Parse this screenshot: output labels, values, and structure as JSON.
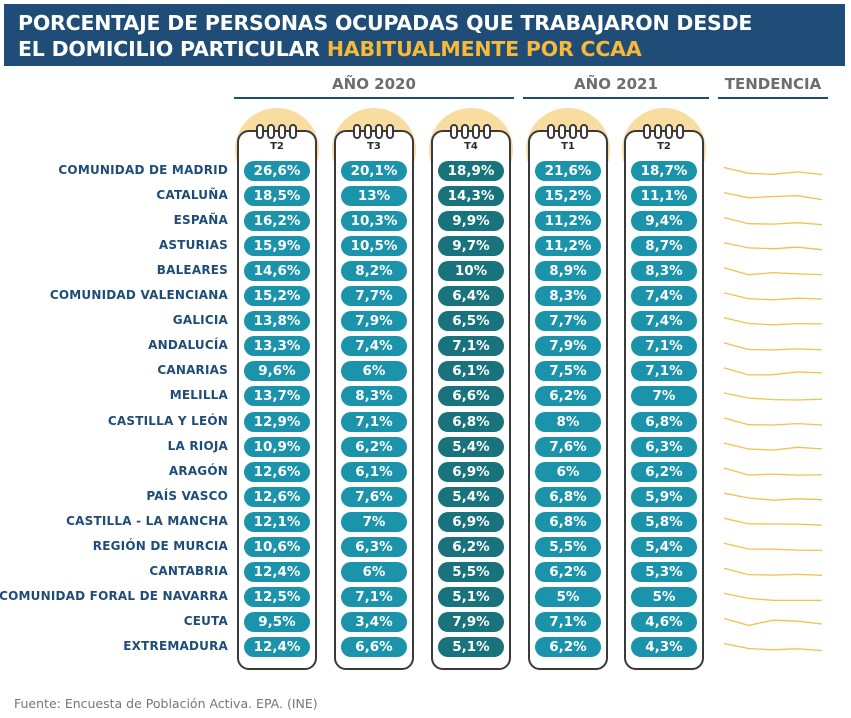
{
  "title": {
    "part1": "PORCENTAJE DE PERSONAS OCUPADAS QUE TRABAJARON DESDE",
    "part2": "EL DOMICILIO PARTICULAR ",
    "highlight": "HABITUALMENTE POR CCAA"
  },
  "headers": {
    "year2020": "AÑO 2020",
    "year2021": "AÑO 2021",
    "trend": "TENDENCIA"
  },
  "colors": {
    "title_bg": "#1f4d77",
    "highlight": "#f6b93a",
    "pill_2020_light": "#1a93ab",
    "pill_2020_dark": "#18737c",
    "pill_2021": "#1a93ab",
    "trend_line": "#f2c14e",
    "circle": "#f8dca0"
  },
  "source": "Fuente: Encuesta de Población Activa. EPA. (INE)",
  "chart_data": {
    "type": "table",
    "columns": [
      "T2",
      "T3",
      "T4",
      "T1",
      "T2"
    ],
    "column_years": [
      "AÑO 2020",
      "AÑO 2020",
      "AÑO 2020",
      "AÑO 2021",
      "AÑO 2021"
    ],
    "trend_column": "TENDENCIA",
    "rows": [
      {
        "region": "COMUNIDAD DE MADRID",
        "labels": [
          "26,6%",
          "20,1%",
          "18,9%",
          "21,6%",
          "18,7%"
        ],
        "values": [
          26.6,
          20.1,
          18.9,
          21.6,
          18.7
        ]
      },
      {
        "region": "CATALUÑA",
        "labels": [
          "18,5%",
          "13%",
          "14,3%",
          "15,2%",
          "11,1%"
        ],
        "values": [
          18.5,
          13,
          14.3,
          15.2,
          11.1
        ]
      },
      {
        "region": "ESPAÑA",
        "labels": [
          "16,2%",
          "10,3%",
          "9,9%",
          "11,2%",
          "9,4%"
        ],
        "values": [
          16.2,
          10.3,
          9.9,
          11.2,
          9.4
        ]
      },
      {
        "region": "ASTURIAS",
        "labels": [
          "15,9%",
          "10,5%",
          "9,7%",
          "11,2%",
          "8,7%"
        ],
        "values": [
          15.9,
          10.5,
          9.7,
          11.2,
          8.7
        ]
      },
      {
        "region": "BALEARES",
        "labels": [
          "14,6%",
          "8,2%",
          "10%",
          "8,9%",
          "8,3%"
        ],
        "values": [
          14.6,
          8.2,
          10,
          8.9,
          8.3
        ]
      },
      {
        "region": "COMUNIDAD VALENCIANA",
        "labels": [
          "15,2%",
          "7,7%",
          "6,4%",
          "8,3%",
          "7,4%"
        ],
        "values": [
          15.2,
          7.7,
          6.4,
          8.3,
          7.4
        ]
      },
      {
        "region": "GALICIA",
        "labels": [
          "13,8%",
          "7,9%",
          "6,5%",
          "7,7%",
          "7,4%"
        ],
        "values": [
          13.8,
          7.9,
          6.5,
          7.7,
          7.4
        ]
      },
      {
        "region": "ANDALUCÍA",
        "labels": [
          "13,3%",
          "7,4%",
          "7,1%",
          "7,9%",
          "7,1%"
        ],
        "values": [
          13.3,
          7.4,
          7.1,
          7.9,
          7.1
        ]
      },
      {
        "region": "CANARIAS",
        "labels": [
          "9,6%",
          "6%",
          "6,1%",
          "7,5%",
          "7,1%"
        ],
        "values": [
          9.6,
          6,
          6.1,
          7.5,
          7.1
        ]
      },
      {
        "region": "MELILLA",
        "labels": [
          "13,7%",
          "8,3%",
          "6,6%",
          "6,2%",
          "7%"
        ],
        "values": [
          13.7,
          8.3,
          6.6,
          6.2,
          7
        ]
      },
      {
        "region": "CASTILLA Y LEÓN",
        "labels": [
          "12,9%",
          "7,1%",
          "6,8%",
          "8%",
          "6,8%"
        ],
        "values": [
          12.9,
          7.1,
          6.8,
          8,
          6.8
        ]
      },
      {
        "region": "LA RIOJA",
        "labels": [
          "10,9%",
          "6,2%",
          "5,4%",
          "7,6%",
          "6,3%"
        ],
        "values": [
          10.9,
          6.2,
          5.4,
          7.6,
          6.3
        ]
      },
      {
        "region": "ARAGÓN",
        "labels": [
          "12,6%",
          "6,1%",
          "6,9%",
          "6%",
          "6,2%"
        ],
        "values": [
          12.6,
          6.1,
          6.9,
          6,
          6.2
        ]
      },
      {
        "region": "PAÍS VASCO",
        "labels": [
          "12,6%",
          "7,6%",
          "5,4%",
          "6,8%",
          "5,9%"
        ],
        "values": [
          12.6,
          7.6,
          5.4,
          6.8,
          5.9
        ]
      },
      {
        "region": "CASTILLA - LA MANCHA",
        "labels": [
          "12,1%",
          "7%",
          "6,9%",
          "6,8%",
          "5,8%"
        ],
        "values": [
          12.1,
          7,
          6.9,
          6.8,
          5.8
        ]
      },
      {
        "region": "REGIÓN DE MURCIA",
        "labels": [
          "10,6%",
          "6,3%",
          "6,2%",
          "5,5%",
          "5,4%"
        ],
        "values": [
          10.6,
          6.3,
          6.2,
          5.5,
          5.4
        ]
      },
      {
        "region": "CANTABRIA",
        "labels": [
          "12,4%",
          "6%",
          "5,5%",
          "6,2%",
          "5,3%"
        ],
        "values": [
          12.4,
          6,
          5.5,
          6.2,
          5.3
        ]
      },
      {
        "region": "COMUNIDAD FORAL DE NAVARRA",
        "labels": [
          "12,5%",
          "7,1%",
          "5,1%",
          "5%",
          "5%"
        ],
        "values": [
          12.5,
          7.1,
          5.1,
          5,
          5
        ]
      },
      {
        "region": "CEUTA",
        "labels": [
          "9,5%",
          "3,4%",
          "7,9%",
          "7,1%",
          "4,6%"
        ],
        "values": [
          9.5,
          3.4,
          7.9,
          7.1,
          4.6
        ]
      },
      {
        "region": "EXTREMADURA",
        "labels": [
          "12,4%",
          "6,6%",
          "5,1%",
          "6,2%",
          "4,3%"
        ],
        "values": [
          12.4,
          6.6,
          5.1,
          6.2,
          4.3
        ]
      }
    ]
  }
}
